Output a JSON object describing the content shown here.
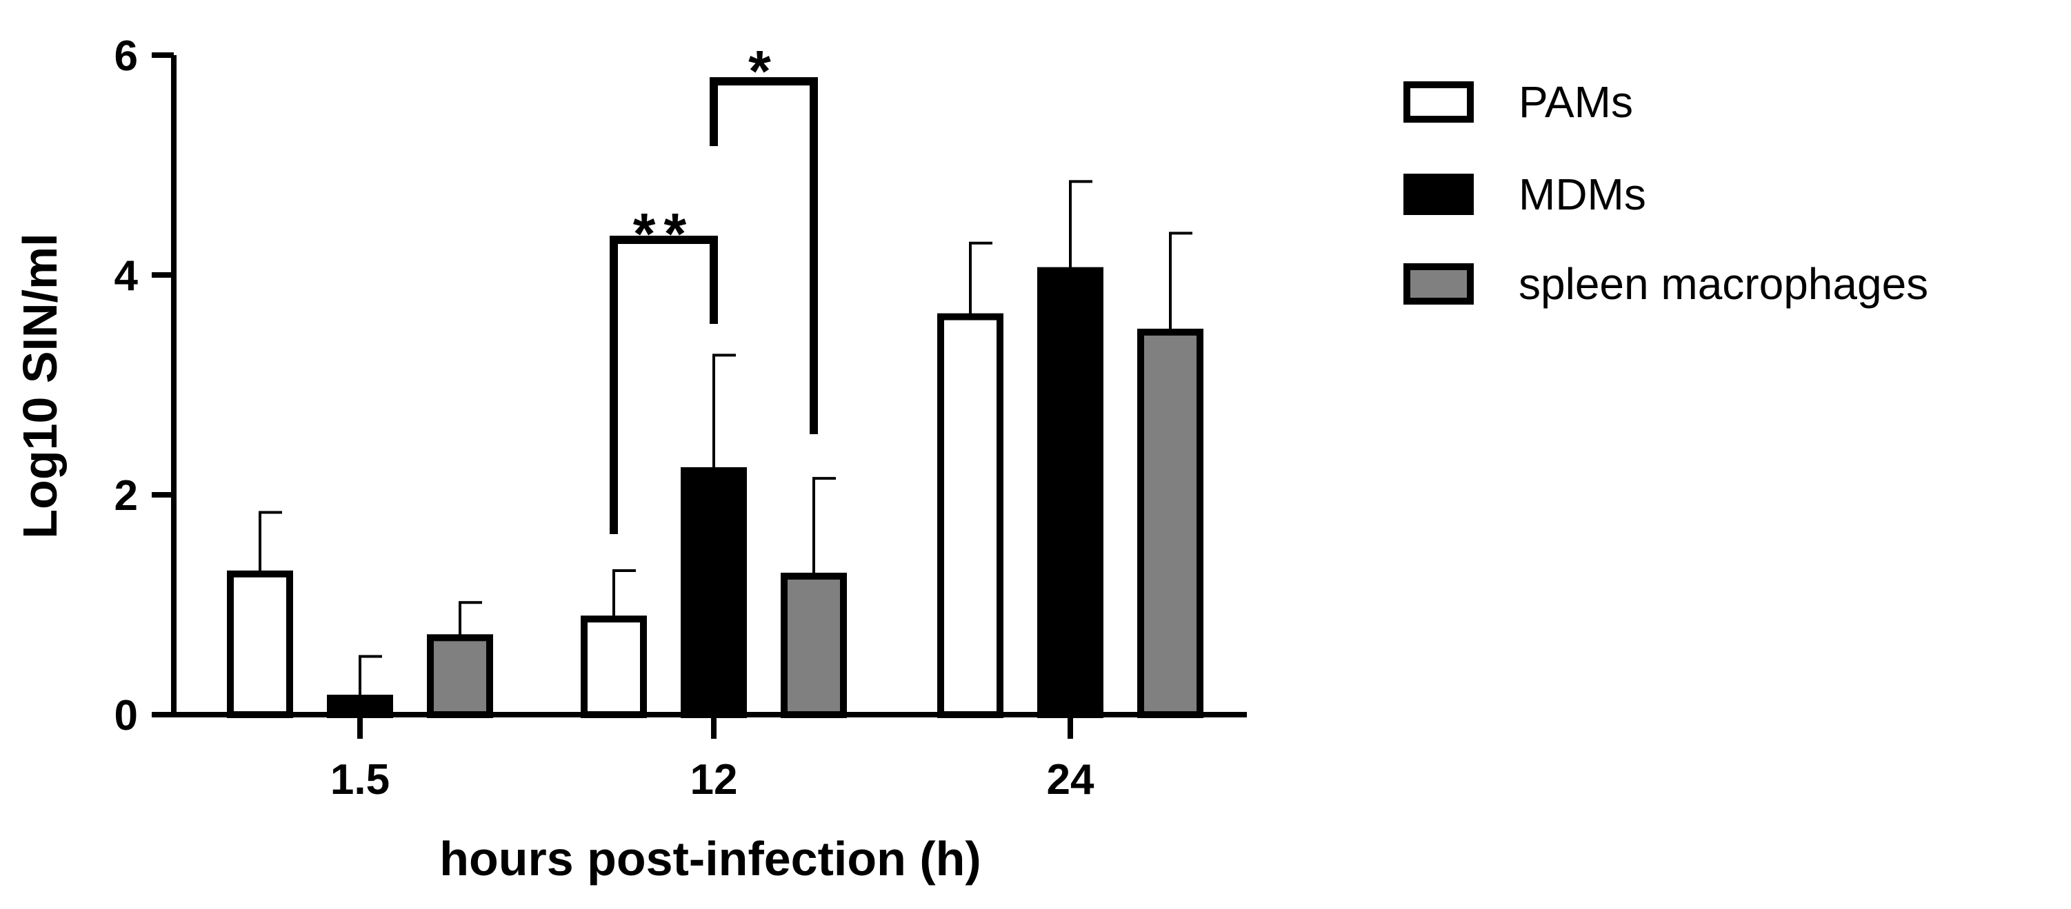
{
  "chart_data": {
    "type": "bar",
    "xlabel": "hours post-infection (h)",
    "ylabel": "Log10 SIN/ml",
    "ylim": [
      0,
      6
    ],
    "yticks": [
      "0",
      "2",
      "4",
      "6"
    ],
    "categories": [
      "1.5",
      "12",
      "24"
    ],
    "series": [
      {
        "name": "PAMs",
        "color": "#ffffff",
        "values": [
          1.28,
          0.87,
          3.62
        ],
        "errors": [
          0.56,
          0.44,
          0.67
        ]
      },
      {
        "name": "MDMs",
        "color": "#000000",
        "values": [
          0.15,
          2.22,
          4.04
        ],
        "errors": [
          0.38,
          1.05,
          0.81
        ]
      },
      {
        "name": "spleen macrophages",
        "color": "#808080",
        "values": [
          0.7,
          1.26,
          3.48
        ],
        "errors": [
          0.32,
          0.89,
          0.9
        ]
      }
    ],
    "significance": [
      {
        "category": "12",
        "from_series": 0,
        "to_series": 1,
        "label": "**"
      },
      {
        "category": "12",
        "from_series": 1,
        "to_series": 2,
        "label": "*"
      }
    ],
    "legend": {
      "position": "top-right"
    },
    "grid": false
  }
}
